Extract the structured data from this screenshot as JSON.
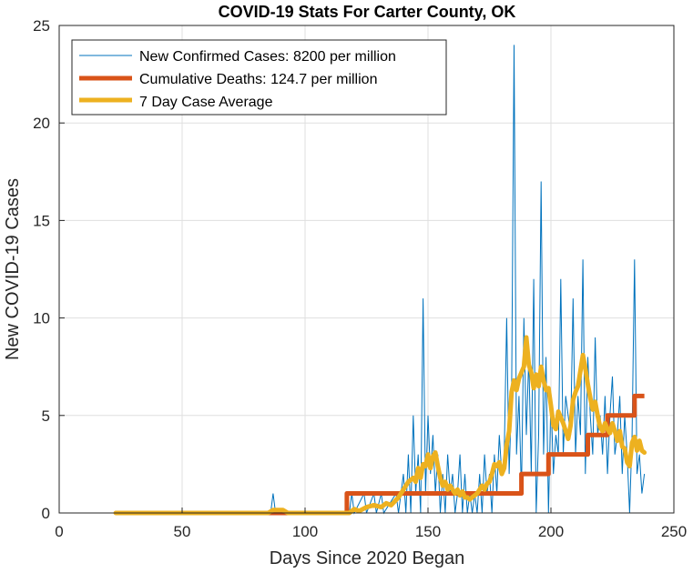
{
  "chart_data": {
    "type": "line",
    "title": "COVID-19 Stats For Carter County, OK",
    "xlabel": "Days Since 2020 Began",
    "ylabel": "New COVID-19 Cases",
    "xlim": [
      0,
      250
    ],
    "ylim": [
      0,
      25
    ],
    "xticks": [
      "0",
      "50",
      "100",
      "150",
      "200",
      "250"
    ],
    "yticks": [
      "0",
      "5",
      "10",
      "15",
      "20",
      "25"
    ],
    "grid": true,
    "legend_position": "top-left",
    "series": [
      {
        "name": "New Confirmed Cases: 8200 per million",
        "color": "#0072BD",
        "points": [
          [
            23,
            0
          ],
          [
            86,
            0
          ],
          [
            87,
            1
          ],
          [
            88,
            0
          ],
          [
            118,
            0
          ],
          [
            119,
            1
          ],
          [
            120,
            0
          ],
          [
            124,
            1
          ],
          [
            125,
            0
          ],
          [
            128,
            1
          ],
          [
            129,
            0
          ],
          [
            131,
            1
          ],
          [
            132,
            0
          ],
          [
            137,
            1
          ],
          [
            138,
            0
          ],
          [
            140,
            2
          ],
          [
            141,
            0
          ],
          [
            142,
            3
          ],
          [
            143,
            0
          ],
          [
            144,
            5
          ],
          [
            145,
            1
          ],
          [
            146,
            3
          ],
          [
            147,
            0
          ],
          [
            148,
            11
          ],
          [
            149,
            1
          ],
          [
            150,
            5
          ],
          [
            151,
            2
          ],
          [
            152,
            4
          ],
          [
            153,
            1
          ],
          [
            154,
            3
          ],
          [
            155,
            0
          ],
          [
            156,
            2
          ],
          [
            157,
            0
          ],
          [
            158,
            3
          ],
          [
            159,
            1
          ],
          [
            160,
            2
          ],
          [
            161,
            0
          ],
          [
            162,
            1
          ],
          [
            163,
            3
          ],
          [
            164,
            0
          ],
          [
            165,
            2
          ],
          [
            166,
            0
          ],
          [
            167,
            1
          ],
          [
            168,
            0
          ],
          [
            169,
            1
          ],
          [
            170,
            0
          ],
          [
            171,
            2
          ],
          [
            172,
            0
          ],
          [
            173,
            3
          ],
          [
            174,
            1
          ],
          [
            175,
            2
          ],
          [
            176,
            0
          ],
          [
            177,
            3
          ],
          [
            178,
            1
          ],
          [
            179,
            4
          ],
          [
            180,
            2
          ],
          [
            181,
            3
          ],
          [
            182,
            10
          ],
          [
            183,
            2
          ],
          [
            184,
            6
          ],
          [
            185,
            24
          ],
          [
            186,
            3
          ],
          [
            187,
            6
          ],
          [
            188,
            1
          ],
          [
            189,
            10
          ],
          [
            190,
            4
          ],
          [
            191,
            8
          ],
          [
            192,
            2
          ],
          [
            193,
            12
          ],
          [
            194,
            0
          ],
          [
            195,
            4
          ],
          [
            196,
            17
          ],
          [
            197,
            3
          ],
          [
            198,
            8
          ],
          [
            199,
            0
          ],
          [
            200,
            6
          ],
          [
            201,
            2
          ],
          [
            202,
            4
          ],
          [
            203,
            3
          ],
          [
            204,
            12
          ],
          [
            205,
            3
          ],
          [
            206,
            6
          ],
          [
            207,
            5
          ],
          [
            208,
            4
          ],
          [
            209,
            11
          ],
          [
            210,
            3
          ],
          [
            211,
            6
          ],
          [
            212,
            4
          ],
          [
            213,
            13
          ],
          [
            214,
            2
          ],
          [
            215,
            8
          ],
          [
            216,
            5
          ],
          [
            217,
            3
          ],
          [
            218,
            9
          ],
          [
            219,
            4
          ],
          [
            220,
            5
          ],
          [
            221,
            3
          ],
          [
            222,
            6
          ],
          [
            223,
            2
          ],
          [
            224,
            5
          ],
          [
            225,
            7
          ],
          [
            226,
            3
          ],
          [
            227,
            4
          ],
          [
            228,
            6
          ],
          [
            229,
            2
          ],
          [
            230,
            5
          ],
          [
            231,
            3
          ],
          [
            232,
            0
          ],
          [
            233,
            4
          ],
          [
            234,
            13
          ],
          [
            235,
            2
          ],
          [
            236,
            3
          ],
          [
            237,
            1
          ],
          [
            238,
            2
          ]
        ]
      },
      {
        "name": "Cumulative Deaths: 124.7 per million",
        "color": "#D95319",
        "points": [
          [
            23,
            0
          ],
          [
            117,
            0
          ],
          [
            117,
            1
          ],
          [
            188,
            1
          ],
          [
            188,
            2
          ],
          [
            199,
            2
          ],
          [
            199,
            3
          ],
          [
            215,
            3
          ],
          [
            215,
            4
          ],
          [
            223,
            4
          ],
          [
            223,
            5
          ],
          [
            234,
            5
          ],
          [
            234,
            6
          ],
          [
            238,
            6
          ]
        ]
      },
      {
        "name": "7 Day Case Average",
        "color": "#EDB120",
        "points": [
          [
            23,
            0
          ],
          [
            85,
            0
          ],
          [
            87,
            0.15
          ],
          [
            91,
            0.15
          ],
          [
            93,
            0
          ],
          [
            118,
            0
          ],
          [
            120,
            0.2
          ],
          [
            122,
            0.1
          ],
          [
            125,
            0.3
          ],
          [
            128,
            0.4
          ],
          [
            131,
            0.3
          ],
          [
            133,
            0.5
          ],
          [
            135,
            0.4
          ],
          [
            138,
            0.8
          ],
          [
            140,
            1.2
          ],
          [
            142,
            1.6
          ],
          [
            144,
            1.8
          ],
          [
            145,
            1.6
          ],
          [
            146,
            2.3
          ],
          [
            147,
            1.8
          ],
          [
            148,
            2.5
          ],
          [
            149,
            2.4
          ],
          [
            150,
            3.0
          ],
          [
            151,
            2.3
          ],
          [
            152,
            2.9
          ],
          [
            153,
            3.1
          ],
          [
            154,
            2.4
          ],
          [
            155,
            1.8
          ],
          [
            156,
            1.4
          ],
          [
            157,
            1.6
          ],
          [
            158,
            1.2
          ],
          [
            159,
            1.4
          ],
          [
            160,
            1.2
          ],
          [
            161,
            1.0
          ],
          [
            162,
            1.2
          ],
          [
            163,
            0.9
          ],
          [
            164,
            1.1
          ],
          [
            165,
            0.8
          ],
          [
            166,
            0.8
          ],
          [
            167,
            0.7
          ],
          [
            168,
            0.8
          ],
          [
            169,
            0.9
          ],
          [
            170,
            1.0
          ],
          [
            171,
            1.2
          ],
          [
            172,
            1.4
          ],
          [
            173,
            1.2
          ],
          [
            174,
            1.5
          ],
          [
            175,
            1.6
          ],
          [
            176,
            2.0
          ],
          [
            177,
            2.5
          ],
          [
            178,
            2.4
          ],
          [
            179,
            2.6
          ],
          [
            180,
            2.0
          ],
          [
            181,
            2.3
          ],
          [
            182,
            3.5
          ],
          [
            183,
            4.2
          ],
          [
            184,
            6.2
          ],
          [
            185,
            6.8
          ],
          [
            186,
            6.3
          ],
          [
            187,
            6.9
          ],
          [
            188,
            7.2
          ],
          [
            189,
            7.5
          ],
          [
            190,
            9.0
          ],
          [
            191,
            7.6
          ],
          [
            192,
            7.2
          ],
          [
            193,
            6.4
          ],
          [
            194,
            7.1
          ],
          [
            195,
            6.5
          ],
          [
            196,
            7.5
          ],
          [
            197,
            6.8
          ],
          [
            198,
            6.3
          ],
          [
            199,
            6.4
          ],
          [
            200,
            5.5
          ],
          [
            201,
            4.5
          ],
          [
            202,
            4.3
          ],
          [
            203,
            5.2
          ],
          [
            204,
            4.9
          ],
          [
            205,
            4.6
          ],
          [
            206,
            4.2
          ],
          [
            207,
            3.8
          ],
          [
            208,
            4.5
          ],
          [
            209,
            5.8
          ],
          [
            210,
            6.2
          ],
          [
            211,
            6.5
          ],
          [
            212,
            7.3
          ],
          [
            213,
            8.1
          ],
          [
            214,
            7.4
          ],
          [
            215,
            6.6
          ],
          [
            216,
            5.9
          ],
          [
            217,
            5.3
          ],
          [
            218,
            5.7
          ],
          [
            219,
            5.0
          ],
          [
            220,
            4.4
          ],
          [
            221,
            4.2
          ],
          [
            222,
            4.6
          ],
          [
            223,
            4.3
          ],
          [
            224,
            4.1
          ],
          [
            225,
            4.6
          ],
          [
            226,
            4.2
          ],
          [
            227,
            3.7
          ],
          [
            228,
            4.2
          ],
          [
            229,
            3.4
          ],
          [
            230,
            3.3
          ],
          [
            231,
            2.6
          ],
          [
            232,
            2.4
          ],
          [
            233,
            3.6
          ],
          [
            234,
            3.9
          ],
          [
            235,
            3.2
          ],
          [
            236,
            3.7
          ],
          [
            237,
            3.2
          ],
          [
            238,
            3.1
          ]
        ]
      }
    ]
  }
}
